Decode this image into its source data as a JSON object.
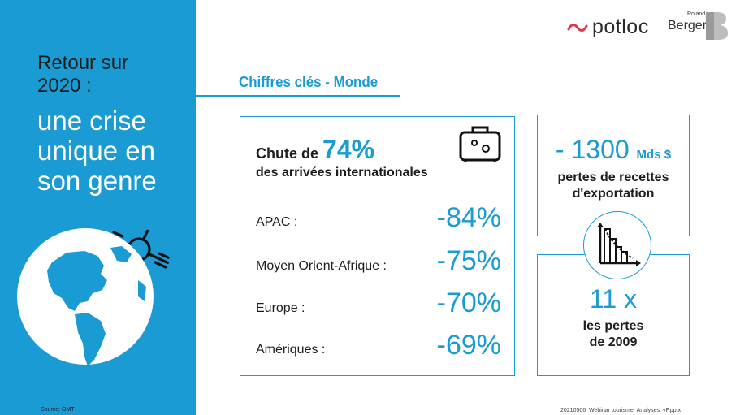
{
  "sidebar": {
    "title_line1": "Retour sur",
    "title_line2": "2020 :",
    "title_big": "une crise unique en son genre",
    "source": "Source: OMT",
    "background_color": "#1a9bd3",
    "icons": [
      "globe-icon",
      "airplane-icon"
    ]
  },
  "header": {
    "section_title": "Chiffres clés - Monde",
    "logos": {
      "potloc": "potloc",
      "rb_small": "Roland",
      "rb_big": "Berger"
    }
  },
  "card_main": {
    "headline_prefix": "Chute de ",
    "headline_pct": "74%",
    "headline_sub": "des arrivées internationales",
    "icon": "suitcase-icon",
    "regions": [
      {
        "label": "APAC :",
        "value": "-84%"
      },
      {
        "label": "Moyen Orient-Afrique :",
        "value": "-75%"
      },
      {
        "label": "Europe :",
        "value": "-70%"
      },
      {
        "label": "Amériques :",
        "value": "-69%"
      }
    ]
  },
  "card_revenue": {
    "value": "- 1300",
    "unit": "Mds $",
    "sub_line1": "pertes de recettes",
    "sub_line2": "d'exportation"
  },
  "card_multiple": {
    "value": "11 x",
    "sub_line1": "les pertes",
    "sub_line2": "de 2009"
  },
  "center_icon": "declining-bar-chart-icon",
  "footer": {
    "filename": "20210506_Webinar tourisme_Analyses_vF.pptx"
  },
  "colors": {
    "accent": "#1a9bd3",
    "text": "#1d1d1d",
    "potloc_red": "#e8334a"
  }
}
